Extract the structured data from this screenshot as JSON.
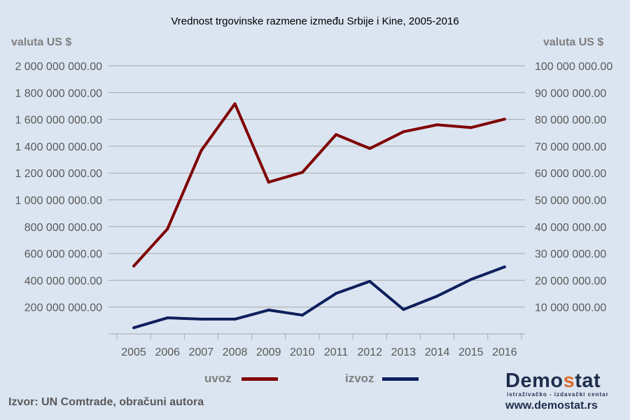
{
  "chart_data": {
    "type": "line",
    "title": "Vrednost trgovinske razmene između Srbije i Kine, 2005-2016",
    "ylabel_left": "valuta US $",
    "ylabel_right": "valuta US $",
    "categories": [
      "2005",
      "2006",
      "2007",
      "2008",
      "2009",
      "2010",
      "2011",
      "2012",
      "2013",
      "2014",
      "2015",
      "2016"
    ],
    "ylim_left": [
      0,
      2000000000
    ],
    "ylim_right": [
      0,
      100000000
    ],
    "yticks_left": [
      "200 000 000.00",
      "400 000 000.00",
      "600 000 000.00",
      "800 000 000.00",
      "1 000 000 000.00",
      "1 200 000 000.00",
      "1 400 000 000.00",
      "1 600 000 000.00",
      "1 800 000 000.00",
      "2 000 000 000.00"
    ],
    "yticks_right": [
      "10 000 000.00",
      "20 000 000.00",
      "30 000 000.00",
      "40 000 000.00",
      "50 000 000.00",
      "60 000 000.00",
      "70 000 000.00",
      "80 000 000.00",
      "90 000 000.00",
      "100 000 000.00"
    ],
    "grid": true,
    "legend_position": "bottom",
    "series": [
      {
        "name": "uvoz",
        "axis": "left",
        "color": "#7f0000",
        "values": [
          506000000,
          783000000,
          1367000000,
          1717000000,
          1132000000,
          1205000000,
          1487000000,
          1383000000,
          1508000000,
          1560000000,
          1539000000,
          1602000000
        ]
      },
      {
        "name": "izvoz",
        "axis": "right",
        "color": "#0d1f5c",
        "values": [
          2300000,
          6000000,
          5500000,
          5500000,
          8900000,
          7000000,
          15100000,
          19600000,
          9100000,
          14100000,
          20300000,
          25000000
        ]
      }
    ]
  },
  "source": "Izvor: UN Comtrade, obračuni autora",
  "logo": {
    "name_a": "Demo",
    "name_b": "s",
    "name_c": "tat",
    "tagline": "istraživačko - izdavački centar",
    "url": "www.demostat.rs"
  }
}
